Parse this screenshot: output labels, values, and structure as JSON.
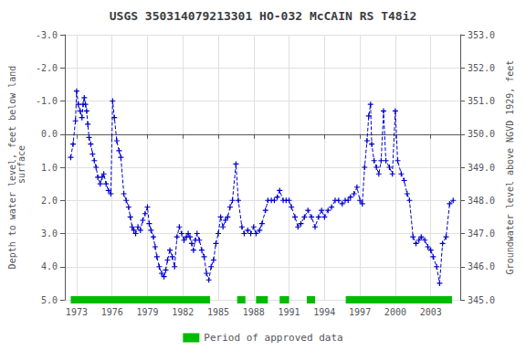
{
  "chart_data": {
    "type": "line",
    "title": "USGS 350314079213301 HO-032 McCAIN RS T48i2",
    "ylabel": "Depth to water level, feet below land\n surface",
    "y2label": "Groundwater level above NGVD 1929, feet",
    "xlim": [
      1972.0,
      2005.5
    ],
    "xticks": [
      1973,
      1976,
      1979,
      1982,
      1985,
      1988,
      1991,
      1994,
      1997,
      2000,
      2003
    ],
    "ylim": [
      5.0,
      -3.0
    ],
    "yticks": [
      {
        "value": -3.0,
        "label": "-3.0"
      },
      {
        "value": -2.0,
        "label": "-2.0"
      },
      {
        "value": -1.0,
        "label": "-1.0"
      },
      {
        "value": 0.0,
        "label": "0.0"
      },
      {
        "value": 1.0,
        "label": "1.0"
      },
      {
        "value": 2.0,
        "label": "2.0"
      },
      {
        "value": 3.0,
        "label": "3.0"
      },
      {
        "value": 4.0,
        "label": "4.0"
      },
      {
        "value": 5.0,
        "label": "5.0"
      }
    ],
    "y2lim": [
      345.0,
      353.0
    ],
    "y2ticks": [
      {
        "value": 345.0,
        "label": "345.0"
      },
      {
        "value": 346.0,
        "label": "346.0"
      },
      {
        "value": 347.0,
        "label": "347.0"
      },
      {
        "value": 348.0,
        "label": "348.0"
      },
      {
        "value": 349.0,
        "label": "349.0"
      },
      {
        "value": 350.0,
        "label": "350.0"
      },
      {
        "value": 351.0,
        "label": "351.0"
      },
      {
        "value": 352.0,
        "label": "352.0"
      },
      {
        "value": 353.0,
        "label": "353.0"
      }
    ],
    "grid": true,
    "legend": "bottom",
    "series": [
      {
        "type": "line",
        "color": "#0000CC",
        "marker": "plus",
        "line_style": "dashed",
        "x": [
          1972.5,
          1972.7,
          1972.9,
          1973.0,
          1973.15,
          1973.3,
          1973.45,
          1973.55,
          1973.65,
          1973.75,
          1973.85,
          1973.95,
          1974.05,
          1974.2,
          1974.35,
          1974.5,
          1974.65,
          1974.8,
          1975.0,
          1975.15,
          1975.3,
          1975.5,
          1975.7,
          1975.9,
          1976.05,
          1976.2,
          1976.4,
          1976.6,
          1976.75,
          1977.0,
          1977.2,
          1977.4,
          1977.55,
          1977.7,
          1977.85,
          1978.0,
          1978.2,
          1978.4,
          1978.6,
          1978.8,
          1979.0,
          1979.15,
          1979.3,
          1979.5,
          1979.65,
          1979.8,
          1980.0,
          1980.2,
          1980.4,
          1980.55,
          1980.7,
          1980.9,
          1981.1,
          1981.3,
          1981.5,
          1981.7,
          1981.9,
          1982.1,
          1982.3,
          1982.45,
          1982.6,
          1982.75,
          1982.9,
          1983.05,
          1983.2,
          1983.4,
          1983.6,
          1983.8,
          1984.0,
          1984.2,
          1984.4,
          1984.6,
          1984.8,
          1985.0,
          1985.2,
          1985.4,
          1985.6,
          1985.8,
          1986.0,
          1986.2,
          1986.5,
          1986.7,
          1987.0,
          1987.2,
          1987.5,
          1987.75,
          1988.0,
          1988.2,
          1988.5,
          1988.7,
          1989.0,
          1989.2,
          1989.5,
          1989.75,
          1990.0,
          1990.2,
          1990.5,
          1990.75,
          1991.0,
          1991.2,
          1991.5,
          1991.75,
          1992.0,
          1992.3,
          1992.6,
          1992.9,
          1993.2,
          1993.5,
          1993.75,
          1994.0,
          1994.3,
          1994.6,
          1994.9,
          1995.2,
          1995.5,
          1995.75,
          1996.0,
          1996.2,
          1996.5,
          1996.75,
          1997.0,
          1997.2,
          1997.4,
          1997.6,
          1997.75,
          1997.9,
          1998.0,
          1998.2,
          1998.4,
          1998.6,
          1998.8,
          1999.0,
          1999.2,
          1999.5,
          1999.75,
          2000.0,
          2000.2,
          2000.5,
          2000.75,
          2001.0,
          2001.2,
          2001.5,
          2001.75,
          2002.0,
          2002.2,
          2002.5,
          2002.75,
          2003.0,
          2003.2,
          2003.5,
          2003.75,
          2004.0,
          2004.3,
          2004.6,
          2004.9
        ],
        "values": [
          0.7,
          0.3,
          -0.4,
          -1.3,
          -0.9,
          -0.7,
          -0.5,
          -0.9,
          -1.1,
          -0.9,
          -0.7,
          -0.3,
          0.1,
          0.3,
          0.6,
          0.8,
          1.0,
          1.3,
          1.5,
          1.3,
          1.2,
          1.5,
          1.7,
          1.8,
          -1.0,
          -0.5,
          0.2,
          0.5,
          0.7,
          1.8,
          2.0,
          2.2,
          2.5,
          2.8,
          2.9,
          3.0,
          2.8,
          2.9,
          2.6,
          2.4,
          2.2,
          2.7,
          2.9,
          3.1,
          3.4,
          3.7,
          4.0,
          4.2,
          4.3,
          4.1,
          3.8,
          3.5,
          3.7,
          4.0,
          3.1,
          2.8,
          3.0,
          3.2,
          3.1,
          3.0,
          3.1,
          3.3,
          3.5,
          3.2,
          3.0,
          3.2,
          3.5,
          3.7,
          4.2,
          4.4,
          4.0,
          3.8,
          3.3,
          3.0,
          2.5,
          2.8,
          2.6,
          2.5,
          2.2,
          2.0,
          0.9,
          2.0,
          2.8,
          3.0,
          2.9,
          3.0,
          2.8,
          3.0,
          2.9,
          2.7,
          2.3,
          2.0,
          2.0,
          2.0,
          1.9,
          1.7,
          2.0,
          2.0,
          2.0,
          2.2,
          2.5,
          2.8,
          2.7,
          2.5,
          2.3,
          2.5,
          2.8,
          2.5,
          2.3,
          2.5,
          2.3,
          2.2,
          2.0,
          2.0,
          2.1,
          2.0,
          2.0,
          1.9,
          1.8,
          1.6,
          2.0,
          2.1,
          1.0,
          0.2,
          -0.55,
          -0.9,
          0.3,
          0.8,
          1.0,
          1.2,
          0.8,
          -0.7,
          0.8,
          1.0,
          1.2,
          -0.7,
          0.8,
          1.2,
          1.4,
          1.8,
          2.0,
          3.1,
          3.3,
          3.2,
          3.1,
          3.2,
          3.4,
          3.5,
          3.7,
          4.0,
          4.5,
          3.3,
          3.1,
          2.1,
          2.0
        ]
      },
      {
        "name": "Period of approved data",
        "type": "band",
        "color": "#00BB00",
        "y": 5.0,
        "segments": [
          [
            1972.5,
            1984.3
          ],
          [
            1986.6,
            1987.3
          ],
          [
            1988.2,
            1989.2
          ],
          [
            1990.2,
            1991.0
          ],
          [
            1992.5,
            1993.2
          ],
          [
            1995.8,
            2004.8
          ]
        ]
      }
    ]
  }
}
